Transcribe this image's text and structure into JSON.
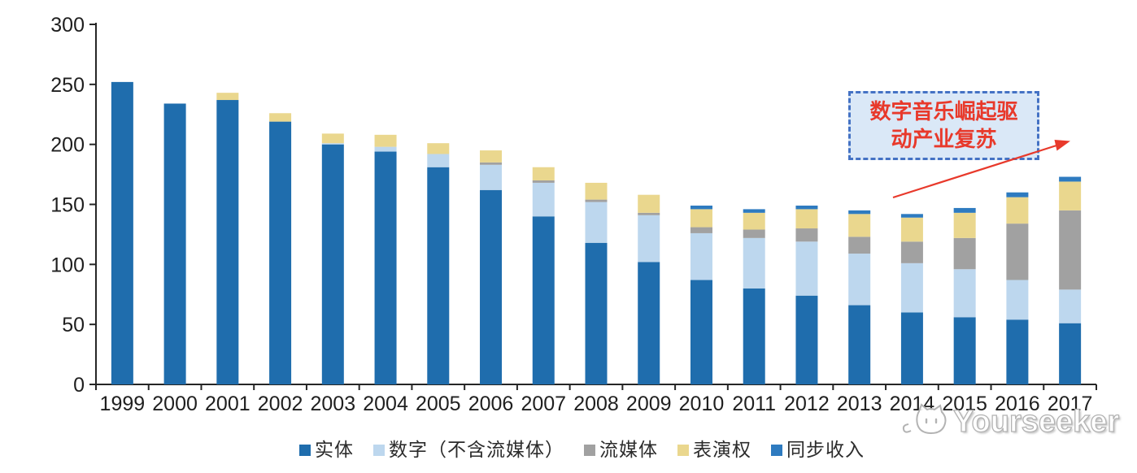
{
  "chart_data": {
    "type": "bar",
    "stacked": true,
    "title": "",
    "xlabel": "",
    "ylabel": "",
    "categories": [
      "1999",
      "2000",
      "2001",
      "2002",
      "2003",
      "2004",
      "2005",
      "2006",
      "2007",
      "2008",
      "2009",
      "2010",
      "2011",
      "2012",
      "2013",
      "2014",
      "2015",
      "2016",
      "2017"
    ],
    "series": [
      {
        "name": "实体",
        "color": "#1F6DAD",
        "values": [
          252,
          234,
          237,
          219,
          200,
          194,
          181,
          162,
          140,
          118,
          102,
          87,
          80,
          74,
          66,
          60,
          56,
          54,
          51
        ]
      },
      {
        "name": "数字（不含流媒体）",
        "color": "#BDD7EE",
        "values": [
          0,
          0,
          0,
          0,
          1,
          4,
          11,
          21,
          28,
          34,
          39,
          39,
          42,
          45,
          43,
          41,
          40,
          33,
          28
        ]
      },
      {
        "name": "流媒体",
        "color": "#A1A1A1",
        "values": [
          0,
          0,
          0,
          0,
          0,
          0,
          0,
          2,
          2,
          2,
          2,
          5,
          7,
          11,
          14,
          18,
          26,
          47,
          66
        ]
      },
      {
        "name": "表演权",
        "color": "#EAD78E",
        "values": [
          0,
          0,
          6,
          7,
          8,
          10,
          9,
          10,
          11,
          14,
          15,
          15,
          14,
          16,
          19,
          20,
          21,
          22,
          24
        ]
      },
      {
        "name": "同步收入",
        "color": "#2E7BC0",
        "values": [
          0,
          0,
          0,
          0,
          0,
          0,
          0,
          0,
          0,
          0,
          0,
          3,
          3,
          3,
          3,
          3,
          4,
          4,
          4
        ]
      }
    ],
    "ylim": [
      0,
      300
    ],
    "yticks": [
      0,
      50,
      100,
      150,
      200,
      250,
      300
    ],
    "grid": false,
    "legend_position": "bottom",
    "axis_color": "#262626"
  },
  "annotation": {
    "line1": "数字音乐崛起驱",
    "line2": "动产业复苏",
    "text_color": "#E8392B",
    "box_border_color": "#4472C4",
    "box_fill_color": "#DAE8F7",
    "arrow_color": "#E8392B"
  },
  "watermark": {
    "text": "Yourseeker",
    "logo": "cat-logo"
  }
}
